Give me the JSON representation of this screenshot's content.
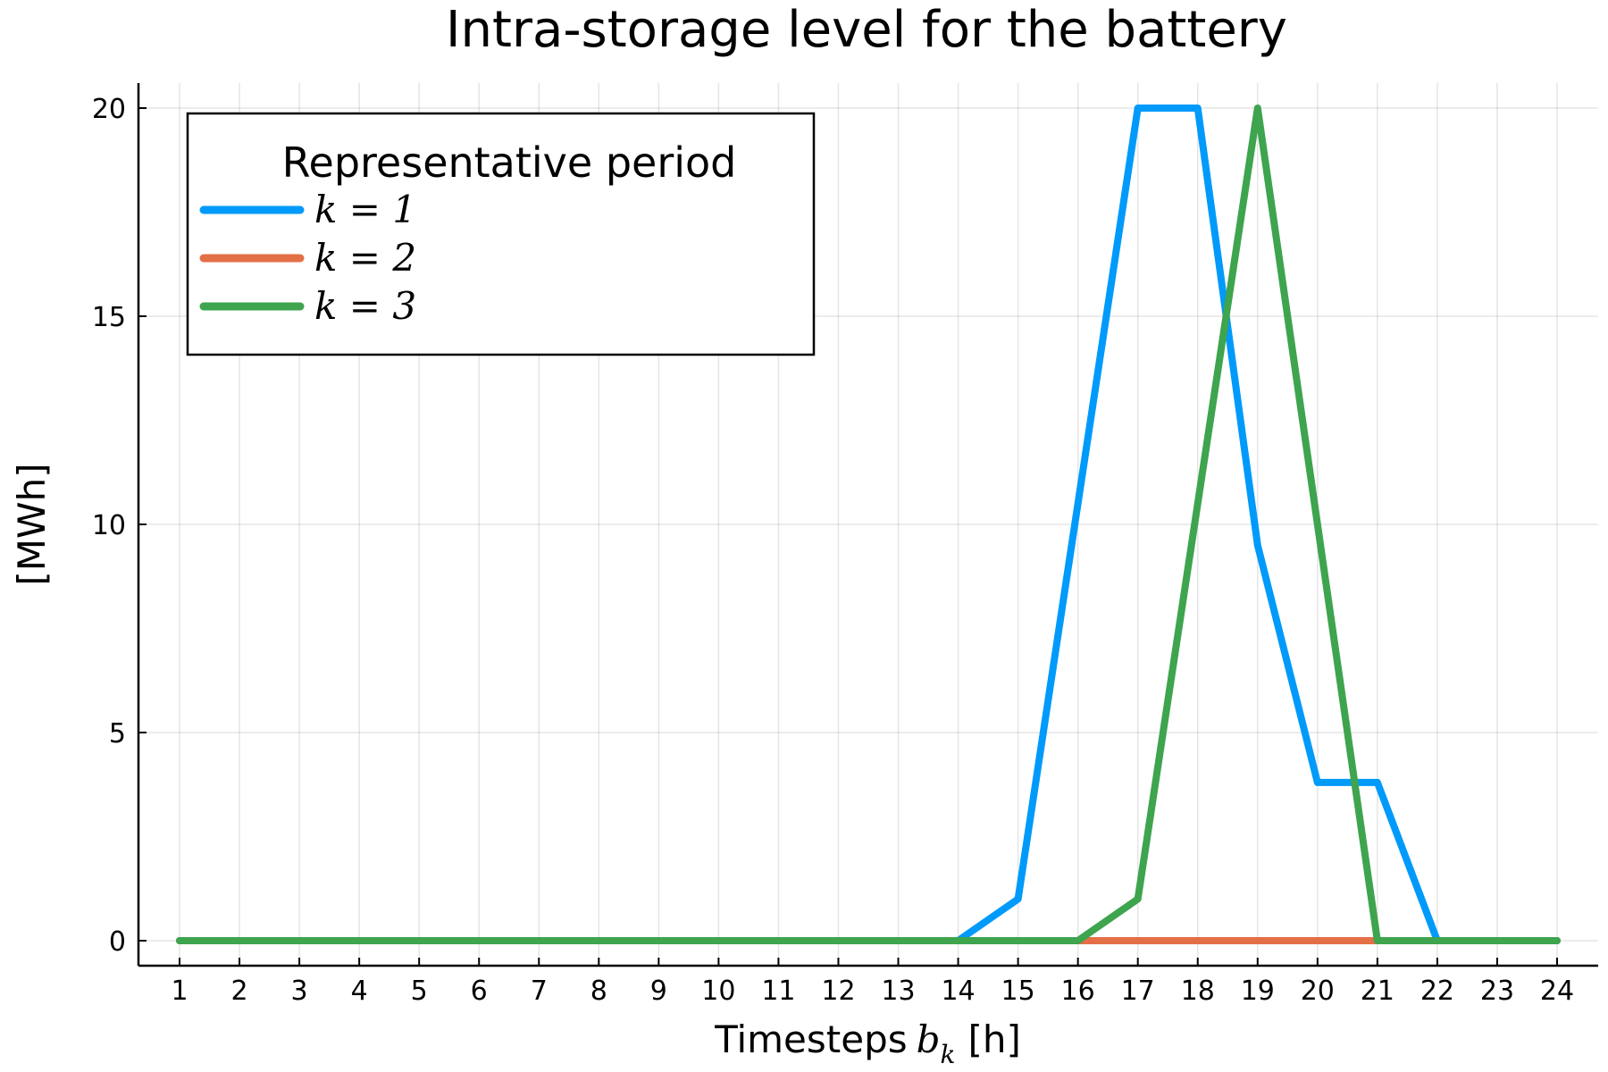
{
  "chart_data": {
    "type": "line",
    "title": "Intra-storage level for the battery",
    "xlabel": "Timesteps",
    "xlabel_math": "b",
    "xlabel_sub": "k",
    "xlabel_unit": "[h]",
    "ylabel": "[MWh]",
    "x": [
      1,
      2,
      3,
      4,
      5,
      6,
      7,
      8,
      9,
      10,
      11,
      12,
      13,
      14,
      15,
      16,
      17,
      18,
      19,
      20,
      21,
      22,
      23,
      24
    ],
    "xticks": [
      "1",
      "2",
      "3",
      "4",
      "5",
      "6",
      "7",
      "8",
      "9",
      "10",
      "11",
      "12",
      "13",
      "14",
      "15",
      "16",
      "17",
      "18",
      "19",
      "20",
      "21",
      "22",
      "23",
      "24"
    ],
    "yticks": [
      0,
      5,
      10,
      15,
      20
    ],
    "xlim": [
      0.3,
      24.7
    ],
    "ylim": [
      -0.6,
      20.6
    ],
    "grid": true,
    "legend": {
      "title": "Representative period",
      "placement": "top-left"
    },
    "series": [
      {
        "name": "k = 1",
        "color": "#009AFA",
        "values": [
          0,
          0,
          0,
          0,
          0,
          0,
          0,
          0,
          0,
          0,
          0,
          0,
          0,
          0,
          1,
          10.5,
          20,
          20,
          9.5,
          3.8,
          3.8,
          0,
          0,
          0
        ]
      },
      {
        "name": "k = 2",
        "color": "#E36F47",
        "values": [
          0,
          0,
          0,
          0,
          0,
          0,
          0,
          0,
          0,
          0,
          0,
          0,
          0,
          0,
          0,
          0,
          0,
          0,
          0,
          0,
          0,
          0,
          0,
          0
        ]
      },
      {
        "name": "k = 3",
        "color": "#3EA44E",
        "values": [
          0,
          0,
          0,
          0,
          0,
          0,
          0,
          0,
          0,
          0,
          0,
          0,
          0,
          0,
          0,
          0,
          1,
          10.5,
          20,
          10,
          0,
          0,
          0,
          0
        ]
      }
    ]
  }
}
